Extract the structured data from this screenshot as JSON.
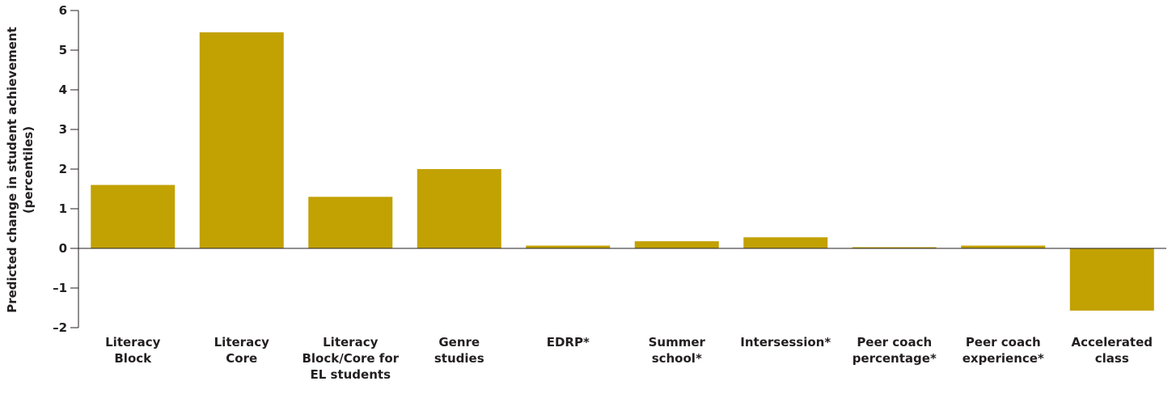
{
  "chart_data": {
    "type": "bar",
    "y_label": "Predicted change in student achievement\n(percentiles)",
    "categories": [
      "Literacy\nBlock",
      "Literacy\nCore",
      "Literacy\nBlock/Core for\nEL students",
      "Genre\nstudies",
      "EDRP*",
      "Summer\nschool*",
      "Intersession*",
      "Peer coach\npercentage*",
      "Peer coach\nexperience*",
      "Accelerated\nclass"
    ],
    "values": [
      1.6,
      5.45,
      1.3,
      2.0,
      0.07,
      0.18,
      0.28,
      0.03,
      0.07,
      -1.57
    ],
    "color": "#c2a103",
    "ylim": [
      -2,
      6
    ],
    "yticks": [
      {
        "value": -2,
        "label": "–2"
      },
      {
        "value": -1,
        "label": "–1"
      },
      0,
      1,
      2,
      3,
      4,
      5,
      6
    ],
    "grid": false
  }
}
